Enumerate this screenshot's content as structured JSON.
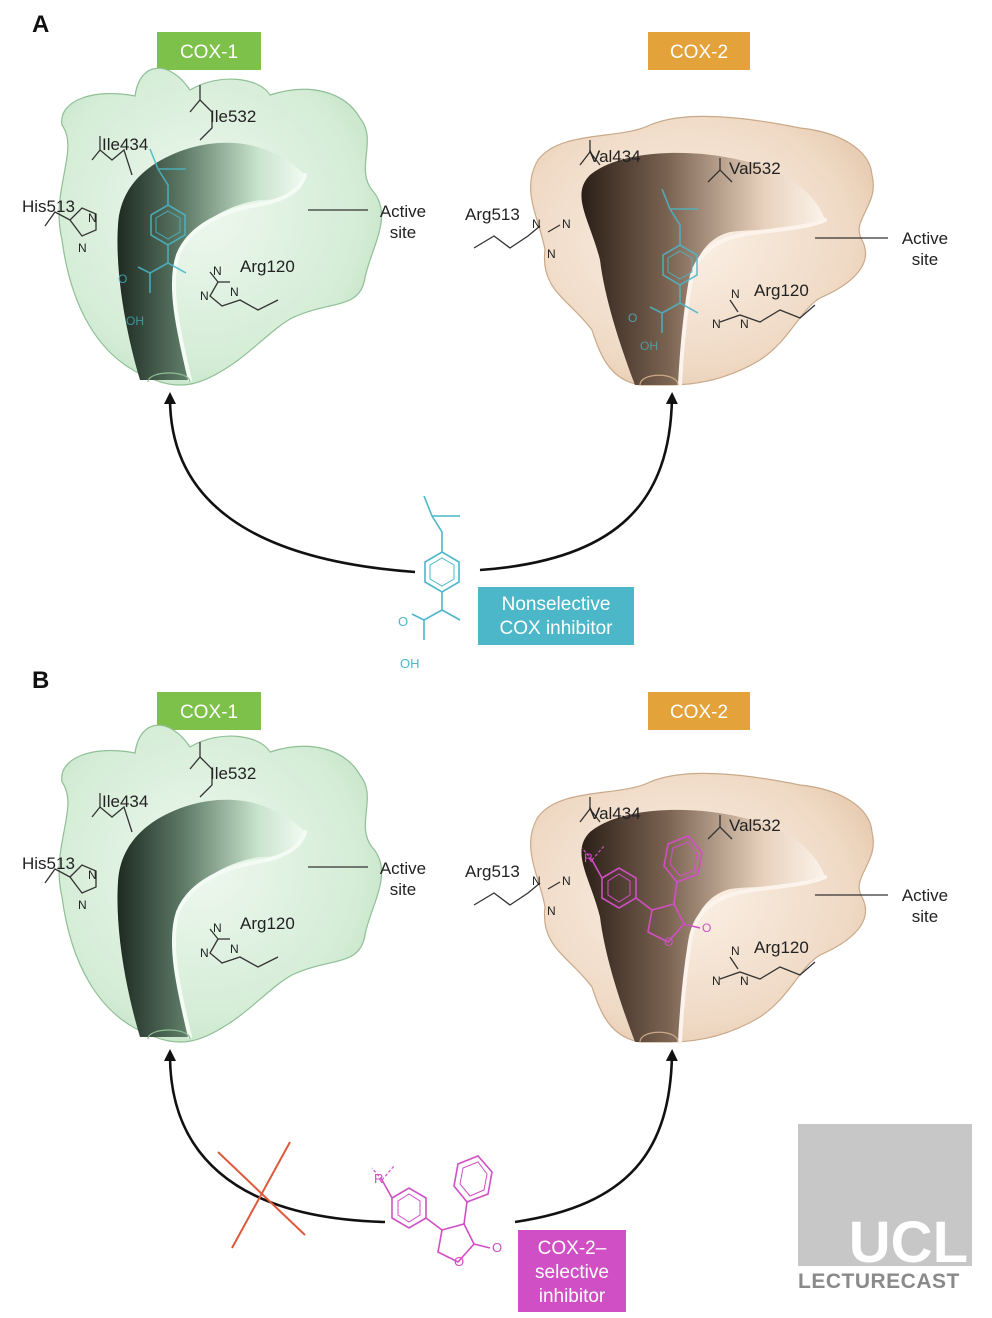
{
  "panels": [
    {
      "letter": "A",
      "cox1": {
        "tag": "COX-1",
        "residues": [
          "Ile434",
          "Ile532",
          "His513",
          "Arg120"
        ],
        "active_site": [
          "Active",
          "site"
        ],
        "atoms": [
          "N",
          "N",
          "N",
          "N",
          "N"
        ],
        "ligand_atoms": [
          "O",
          "OH"
        ]
      },
      "cox2": {
        "tag": "COX-2",
        "residues": [
          "Val434",
          "Val532",
          "Arg513",
          "Arg120"
        ],
        "active_site": [
          "Active",
          "site"
        ],
        "atoms": [
          "N",
          "N",
          "N",
          "N",
          "N",
          "N"
        ],
        "ligand_atoms": [
          "O",
          "OH"
        ]
      },
      "inhibitor": {
        "label": [
          "Nonselective",
          "COX inhibitor"
        ],
        "atoms": [
          "O",
          "OH"
        ]
      }
    },
    {
      "letter": "B",
      "cox1": {
        "tag": "COX-1",
        "residues": [
          "Ile434",
          "Ile532",
          "His513",
          "Arg120"
        ],
        "active_site": [
          "Active",
          "site"
        ],
        "atoms": [
          "N",
          "N",
          "N",
          "N",
          "N"
        ]
      },
      "cox2": {
        "tag": "COX-2",
        "residues": [
          "Val434",
          "Val532",
          "Arg513",
          "Arg120"
        ],
        "active_site": [
          "Active",
          "site"
        ],
        "atoms": [
          "N",
          "N",
          "N",
          "N",
          "N",
          "N"
        ],
        "ligand_atoms": [
          "R",
          "O",
          "O"
        ]
      },
      "inhibitor": {
        "label": [
          "COX-2–",
          "selective",
          "inhibitor"
        ],
        "atoms": [
          "R",
          "O",
          "O"
        ]
      }
    }
  ],
  "watermark": {
    "logo": "UCL",
    "text": "LECTURECAST"
  },
  "colors": {
    "cox1_tag": "#7dc14a",
    "cox2_tag": "#e3a23a",
    "cox1_surface": "#d4ecd6",
    "cox2_surface": "#efd9c4",
    "nonselective": "#4bb7c9",
    "selective": "#d04fc4",
    "block_cross": "#e0583c",
    "watermark": "#c7c7c7"
  }
}
